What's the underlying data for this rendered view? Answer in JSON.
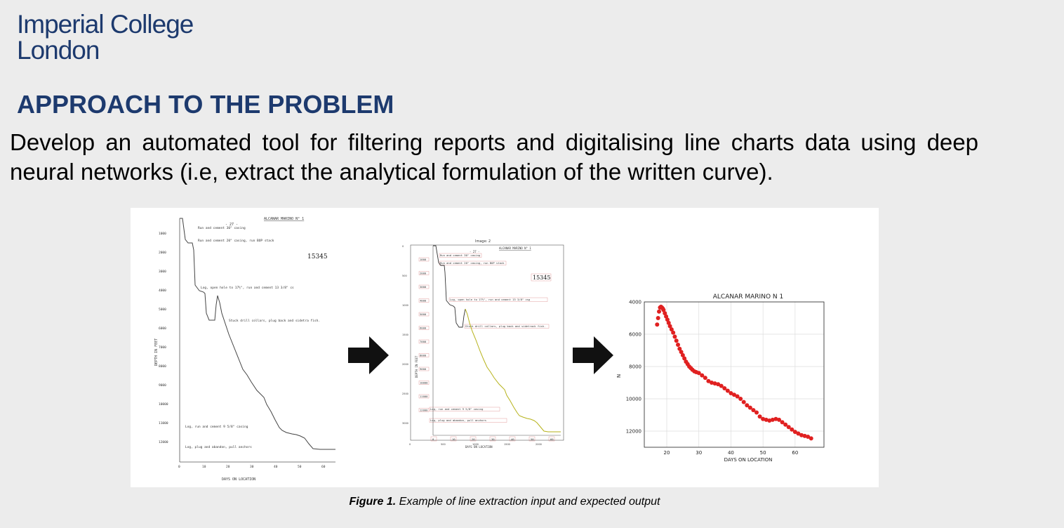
{
  "header": {
    "logo_line1": "Imperial College",
    "logo_line2": "London"
  },
  "heading": "APPROACH TO THE PROBLEM",
  "body_text": "Develop an automated tool for filtering reports and digitalising line charts data using deep neural networks (i.e, extract the analytical formulation of the written curve).",
  "caption": {
    "label": "Figure 1.",
    "text": " Example of line extraction input and expected output"
  },
  "scan1": {
    "title": "ALCANAR MARINO N° 1",
    "page": "- 27 -",
    "stamp": "15345",
    "ylabel": "DEPTH IN FEET",
    "xlabel": "DAYS ON LOCATION",
    "yticks": [
      "1000",
      "2000",
      "3000",
      "4000",
      "5000",
      "6000",
      "7000",
      "8000",
      "9000",
      "10000",
      "11000",
      "12000"
    ],
    "xticks": [
      "0",
      "10",
      "20",
      "30",
      "40",
      "50",
      "60"
    ],
    "notes": [
      "Run and cement 30\" casing",
      "Run and cement 20\" casing, run BOP stack",
      "Log, open hole to 17½\", run and cement 13 3/8\" cs",
      "Stuck drill collars, plug back and sidetra fish.",
      "Log, run and cement 9 5/8\" casing",
      "Log, plug and abandon, pull anchors"
    ]
  },
  "scan2": {
    "title": "Image: 2",
    "heading": "ALCANAR MARINO N° 1",
    "page": "- 27 -",
    "stamp": "15345",
    "ylabel": "DEPTH IN FEET",
    "xlabel": "DAYS ON LOCATION",
    "yticks": [
      "1000",
      "2000",
      "3000",
      "4000",
      "5000",
      "6000",
      "7000",
      "8000",
      "9000",
      "10000",
      "11000",
      "12000"
    ],
    "xticks": [
      "0",
      "10",
      "20",
      "30",
      "40",
      "50",
      "60"
    ],
    "outer_yticks": [
      "0",
      "500",
      "1000",
      "1500",
      "2000",
      "2500",
      "3000"
    ],
    "outer_xticks": [
      "0",
      "500",
      "1000",
      "1500",
      "2000"
    ],
    "notes": [
      "Run and cement 30\" casing",
      "Run and cement 20\" casing, run BOP stack",
      "Log, open hole to 17½\", run and cement 13 3/8\" csg",
      "Stuck drill collars, plug back and sidetrack fish.",
      "Log, run and cement 9 5/8\" casing",
      "Log, plug and abandon, pull anchors"
    ]
  },
  "chart_data": {
    "type": "scatter",
    "title": "ALCANAR MARINO N 1",
    "xlabel": "DAYS ON LOCATION",
    "ylabel": "N",
    "xlim": [
      13,
      69
    ],
    "ylim": [
      13000,
      4000
    ],
    "y_inverted": true,
    "xticks": [
      20,
      30,
      40,
      50,
      60
    ],
    "yticks": [
      4000,
      6000,
      8000,
      10000,
      12000
    ],
    "grid": true,
    "color": "#e02020",
    "series": [
      {
        "x": [
          17,
          17.3,
          17.6,
          17.9,
          18.2,
          18.5,
          18.8,
          19.0,
          19.4,
          19.8,
          20.2,
          20.6,
          21.0,
          21.5,
          22.0,
          22.5,
          23.0,
          23.5,
          24.0,
          24.5,
          25.0,
          25.5,
          26.0,
          26.5,
          27.0,
          27.5,
          28.0,
          28.6,
          29.2,
          30.0,
          31.0,
          32.0,
          33.0,
          34.0,
          35.0,
          36.0,
          37.0,
          38.0,
          39.0,
          40.0,
          41.0,
          42.0,
          43.0,
          44.0,
          45.0,
          46.0,
          47.0,
          48.0,
          49.0,
          50.0,
          51.0,
          52.0,
          53.0,
          54.0,
          55.0,
          56.0,
          57.0,
          58.0,
          59.0,
          60.0,
          61.0,
          62.0,
          63.0,
          64.0,
          65.0
        ],
        "y": [
          5400,
          5000,
          4600,
          4350,
          4300,
          4350,
          4420,
          4500,
          4700,
          4900,
          5100,
          5300,
          5500,
          5700,
          5900,
          6150,
          6400,
          6650,
          6900,
          7100,
          7300,
          7500,
          7700,
          7850,
          8000,
          8100,
          8200,
          8300,
          8350,
          8400,
          8550,
          8700,
          8900,
          9000,
          9050,
          9100,
          9200,
          9350,
          9500,
          9650,
          9750,
          9850,
          10000,
          10200,
          10400,
          10550,
          10700,
          10850,
          11100,
          11250,
          11300,
          11350,
          11300,
          11250,
          11300,
          11450,
          11600,
          11750,
          11900,
          12050,
          12150,
          12250,
          12300,
          12350,
          12450
        ]
      }
    ]
  }
}
